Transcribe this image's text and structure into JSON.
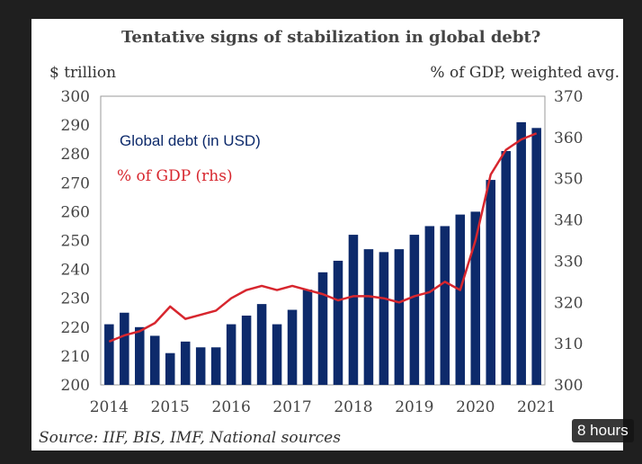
{
  "chart_data": {
    "type": "bar+line",
    "title": "Tentative signs of stabilization in global debt?",
    "ylabel_left": "$ trillion",
    "ylabel_right": "% of GDP, weighted avg.",
    "ylim_left": [
      200,
      300
    ],
    "ylim_right": [
      300,
      370
    ],
    "yticks_left": [
      "300",
      "290",
      "280",
      "270",
      "260",
      "250",
      "240",
      "230",
      "220",
      "210",
      "200"
    ],
    "yticks_right": [
      "370",
      "360",
      "350",
      "340",
      "330",
      "320",
      "310",
      "300"
    ],
    "xticks": [
      "2014",
      "2015",
      "2016",
      "2017",
      "2018",
      "2019",
      "2020",
      "2021"
    ],
    "grid": false,
    "legend_placement": "top-left",
    "x": [
      "2014Q1",
      "2014Q2",
      "2014Q3",
      "2014Q4",
      "2015Q1",
      "2015Q2",
      "2015Q3",
      "2015Q4",
      "2016Q1",
      "2016Q2",
      "2016Q3",
      "2016Q4",
      "2017Q1",
      "2017Q2",
      "2017Q3",
      "2017Q4",
      "2018Q1",
      "2018Q2",
      "2018Q3",
      "2018Q4",
      "2019Q1",
      "2019Q2",
      "2019Q3",
      "2019Q4",
      "2020Q1",
      "2020Q2",
      "2020Q3",
      "2020Q4",
      "2021Q1"
    ],
    "series": [
      {
        "name": "Global debt (in USD)",
        "axis": "left",
        "type": "bar",
        "color": "#0d2a6b",
        "values": [
          221,
          225,
          220,
          217,
          211,
          215,
          213,
          213,
          221,
          224,
          228,
          221,
          226,
          233,
          239,
          243,
          252,
          247,
          246,
          247,
          252,
          255,
          255,
          259,
          260,
          271,
          281,
          291,
          289
        ]
      },
      {
        "name": "% of GDP (rhs)",
        "axis": "right",
        "type": "line",
        "color": "#d7262e",
        "values": [
          310.5,
          312,
          313,
          315,
          319,
          316,
          317,
          318,
          321,
          323,
          324,
          323,
          324,
          323,
          322,
          320.5,
          321.5,
          321.5,
          321,
          320,
          321.5,
          322.5,
          325,
          323,
          335,
          351,
          357,
          359.5,
          361
        ]
      }
    ],
    "source": "Source: IIF, BIS, IMF, National sources"
  },
  "overlay": {
    "badge": "8 hours"
  }
}
